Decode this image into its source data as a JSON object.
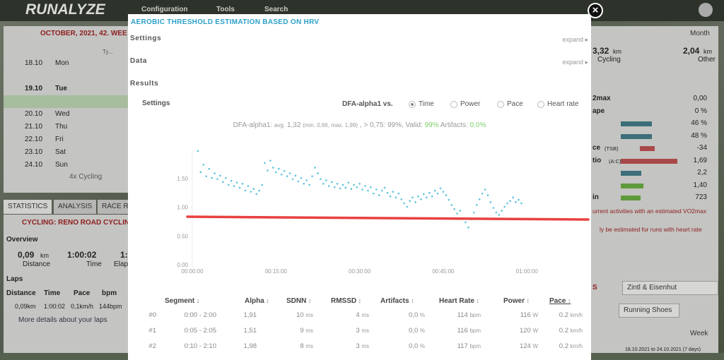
{
  "nav": {
    "logo": "RUNALYZE",
    "items": [
      "Configuration",
      "Tools",
      "Search"
    ]
  },
  "calendar": {
    "title": "OCTOBER, 2021, 42. WEE",
    "column": "Ty...",
    "days": [
      [
        "18.10",
        "Mon"
      ],
      [
        "19.10",
        "Tue"
      ],
      [
        "20.10",
        "Wed"
      ],
      [
        "21.10",
        "Thu"
      ],
      [
        "22.10",
        "Fri"
      ],
      [
        "23.10",
        "Sat"
      ],
      [
        "24.10",
        "Sun"
      ]
    ],
    "summary": "4x Cycling"
  },
  "tabs": [
    "STATISTICS",
    "ANALYSIS",
    "RACE RE"
  ],
  "activity": {
    "title": "CYCLING: RENO ROAD CYCLIN",
    "overview": "Overview",
    "stats": [
      {
        "value": "0,09",
        "unit": "km",
        "label": "Distance"
      },
      {
        "value": "1:00:02",
        "label": "Time"
      },
      {
        "value": "1:",
        "label": "Elap"
      }
    ],
    "laps": "Laps",
    "lap_headers": [
      "Distance",
      "Time",
      "Pace",
      "bpm"
    ],
    "lap_row": [
      "0,09km",
      "1:00:02",
      "0,1km/h",
      "144bpm"
    ],
    "more": "More details about your laps"
  },
  "right": {
    "period": "Month",
    "totals": [
      {
        "value": "3,32",
        "unit": "km",
        "label": "Cycling"
      },
      {
        "value": "2,04",
        "unit": "km",
        "label": "Other"
      }
    ],
    "rows": [
      {
        "label": "2max",
        "value": "0,00"
      },
      {
        "label": "ape",
        "value": "0 %"
      },
      {
        "label": "",
        "value": "46 %"
      },
      {
        "label": "",
        "value": "48 %"
      },
      {
        "label": "ce",
        "sub": "(TSB)",
        "value": "-34"
      },
      {
        "label": "tio",
        "sub": "(A:C)",
        "value": "1,69"
      },
      {
        "label": "",
        "value": "2,2"
      },
      {
        "label": "",
        "value": "1,40"
      },
      {
        "label": "in",
        "value": "723"
      }
    ],
    "notes": [
      "urrent activities with an estimated VO2max",
      "ly be estimated for runs with heart rate"
    ],
    "section": "S",
    "model": "Zintl & Eisenhut",
    "equipment": "Running Shoes",
    "week": "Week",
    "range": "18.10.2021 to 24.10.2021 (7 days)"
  },
  "modal": {
    "title": "AEROBIC THRESHOLD ESTIMATION BASED ON HRV",
    "sections": [
      "Settings",
      "Data",
      "Results"
    ],
    "expand": "expand",
    "settings": "Settings",
    "versus": "DFA-alpha1 vs.",
    "options": [
      "Time",
      "Power",
      "Pace",
      "Heart rate"
    ],
    "selected": "Time",
    "summary": [
      "DFA-alpha1:",
      "avg.",
      "1,32",
      "(min. 0,66, max. 1,99)",
      ", > 0,75: 99%, Valid:",
      "99%",
      "Artifacts:",
      "0,0%"
    ]
  },
  "chart_data": {
    "type": "scatter",
    "color": "#5ec4dc",
    "x": [
      1,
      1.5,
      2,
      2.5,
      3,
      3.5,
      4,
      4.5,
      5,
      5.5,
      6,
      6.5,
      7,
      7.5,
      8,
      8.5,
      9,
      9.5,
      10,
      10.5,
      11,
      11.5,
      12,
      12.5,
      13,
      13.5,
      14,
      14.5,
      15,
      15.5,
      16,
      16.5,
      17,
      17.5,
      18,
      18.5,
      19,
      19.5,
      20,
      20.5,
      21,
      21.5,
      22,
      22.5,
      23,
      23.5,
      24,
      24.5,
      25,
      25.5,
      26,
      26.5,
      27,
      27.5,
      28,
      28.5,
      29,
      29.5,
      30,
      30.5,
      31,
      31.5,
      32,
      32.5,
      33,
      33.5,
      34,
      34.5,
      35,
      35.5,
      36,
      36.5,
      37,
      37.5,
      38,
      38.5,
      39,
      39.5,
      40,
      40.5,
      41,
      41.5,
      42,
      42.5,
      43,
      43.5,
      44,
      44.5,
      45,
      45.5,
      46,
      46.5,
      47,
      47.5,
      48,
      48.5,
      49,
      49.5,
      50,
      50.5,
      51,
      51.5,
      52,
      52.5,
      53,
      53.5,
      54,
      54.5,
      55,
      55.5,
      56,
      56.5,
      57,
      57.5,
      58,
      58.5,
      59
    ],
    "values": [
      1.99,
      1.62,
      1.75,
      1.55,
      1.68,
      1.52,
      1.6,
      1.5,
      1.56,
      1.45,
      1.52,
      1.4,
      1.47,
      1.38,
      1.44,
      1.35,
      1.42,
      1.3,
      1.38,
      1.28,
      1.33,
      1.24,
      1.3,
      1.4,
      1.78,
      1.65,
      1.82,
      1.7,
      1.62,
      1.68,
      1.58,
      1.64,
      1.55,
      1.6,
      1.5,
      1.56,
      1.46,
      1.52,
      1.42,
      1.48,
      1.4,
      1.55,
      1.7,
      1.6,
      1.5,
      1.42,
      1.48,
      1.38,
      1.45,
      1.36,
      1.42,
      1.34,
      1.4,
      1.35,
      1.44,
      1.33,
      1.4,
      1.36,
      1.42,
      1.32,
      1.38,
      1.3,
      1.36,
      1.25,
      1.32,
      1.22,
      1.3,
      1.35,
      1.26,
      1.2,
      1.28,
      1.18,
      1.25,
      1.15,
      1.08,
      1.02,
      1.12,
      1.18,
      1.1,
      1.2,
      1.15,
      1.24,
      1.18,
      1.26,
      1.2,
      1.3,
      1.25,
      1.34,
      1.28,
      1.22,
      1.14,
      1.05,
      0.98,
      0.9,
      0.95,
      0.82,
      0.75,
      0.66,
      0.8,
      0.92,
      1.05,
      1.15,
      1.25,
      1.32,
      1.22,
      1.1,
      1,
      0.92,
      0.88,
      0.95,
      1.02,
      1.08,
      1.12,
      1.18,
      1.1,
      1.14,
      1.08
    ],
    "xlim": [
      0,
      62
    ],
    "ylim": [
      0,
      2
    ],
    "xticks": [
      {
        "value": 0,
        "label": "00:00:00"
      },
      {
        "value": 15,
        "label": "00:15:00"
      },
      {
        "value": 30,
        "label": "00:30:00"
      },
      {
        "value": 45,
        "label": "00:45:00"
      },
      {
        "value": 60,
        "label": "01:00:00"
      }
    ],
    "yticks": [
      {
        "value": 0,
        "label": "0.00"
      },
      {
        "value": 0.5,
        "label": "0.50"
      },
      {
        "value": 1,
        "label": "1.00"
      },
      {
        "value": 1.5,
        "label": "1.50"
      }
    ]
  },
  "table": {
    "headers": [
      "Segment",
      "Alpha",
      "SDNN",
      "RMSSD",
      "Artifacts",
      "Heart Rate",
      "Power",
      "Pace"
    ],
    "units": [
      "",
      "",
      "",
      "ms",
      "ms",
      "%",
      "bpm",
      "W",
      "km/h"
    ],
    "rows": [
      [
        "#0",
        "0:00 - 2:00",
        "1,91",
        "10",
        "4",
        "0,0",
        "114",
        "116",
        "0.2"
      ],
      [
        "#1",
        "0:05 - 2:05",
        "1,51",
        "9",
        "3",
        "0,0",
        "116",
        "120",
        "0.2"
      ],
      [
        "#2",
        "0:10 - 2:10",
        "1,98",
        "8",
        "3",
        "0,0",
        "117",
        "124",
        "0.2"
      ]
    ]
  }
}
